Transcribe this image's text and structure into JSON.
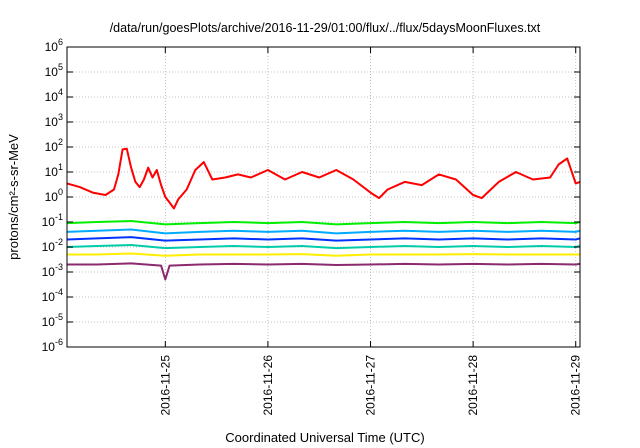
{
  "chart_data": {
    "type": "line",
    "title": "/data/run/goesPlots/archive/2016-11-29/01:00/flux/../flux/5daysMoonFluxes.txt",
    "xlabel": "Coordinated Universal Time (UTC)",
    "ylabel": "protons/cm²-s-sr-MeV",
    "y_scale": "log",
    "ylim": [
      1e-06,
      1000000.0
    ],
    "xlim": [
      "2016-11-24 01:00",
      "2016-11-29 01:00"
    ],
    "grid": true,
    "legend": "none",
    "y_ticks": [
      {
        "value": 1e-06,
        "base": "10",
        "exp": "-6"
      },
      {
        "value": 1e-05,
        "base": "10",
        "exp": "-5"
      },
      {
        "value": 0.0001,
        "base": "10",
        "exp": "-4"
      },
      {
        "value": 0.001,
        "base": "10",
        "exp": "-3"
      },
      {
        "value": 0.01,
        "base": "10",
        "exp": "-2"
      },
      {
        "value": 0.1,
        "base": "10",
        "exp": "-1"
      },
      {
        "value": 1,
        "base": "10",
        "exp": "0"
      },
      {
        "value": 10,
        "base": "10",
        "exp": "1"
      },
      {
        "value": 100,
        "base": "10",
        "exp": "2"
      },
      {
        "value": 1000,
        "base": "10",
        "exp": "3"
      },
      {
        "value": 10000,
        "base": "10",
        "exp": "4"
      },
      {
        "value": 100000,
        "base": "10",
        "exp": "5"
      },
      {
        "value": 1000000,
        "base": "10",
        "exp": "6"
      }
    ],
    "x_ticks": [
      {
        "value": "2016-11-25",
        "label": "2016-11-25"
      },
      {
        "value": "2016-11-26",
        "label": "2016-11-26"
      },
      {
        "value": "2016-11-27",
        "label": "2016-11-27"
      },
      {
        "value": "2016-11-28",
        "label": "2016-11-28"
      },
      {
        "value": "2016-11-29",
        "label": "2016-11-29"
      }
    ],
    "series": [
      {
        "color": "#ff0000",
        "x": [
          "2016-11-24 01:00",
          "2016-11-24 04:00",
          "2016-11-24 07:00",
          "2016-11-24 10:00",
          "2016-11-24 12:00",
          "2016-11-24 13:00",
          "2016-11-24 14:00",
          "2016-11-24 15:00",
          "2016-11-24 16:00",
          "2016-11-24 17:00",
          "2016-11-24 18:00",
          "2016-11-24 19:00",
          "2016-11-24 20:00",
          "2016-11-24 21:00",
          "2016-11-24 22:00",
          "2016-11-24 23:00",
          "2016-11-25 00:00",
          "2016-11-25 01:00",
          "2016-11-25 02:00",
          "2016-11-25 03:00",
          "2016-11-25 05:00",
          "2016-11-25 07:00",
          "2016-11-25 09:00",
          "2016-11-25 11:00",
          "2016-11-25 14:00",
          "2016-11-25 17:00",
          "2016-11-25 20:00",
          "2016-11-26 00:00",
          "2016-11-26 04:00",
          "2016-11-26 08:00",
          "2016-11-26 12:00",
          "2016-11-26 16:00",
          "2016-11-26 20:00",
          "2016-11-27 00:00",
          "2016-11-27 02:00",
          "2016-11-27 04:00",
          "2016-11-27 08:00",
          "2016-11-27 12:00",
          "2016-11-27 16:00",
          "2016-11-27 20:00",
          "2016-11-28 00:00",
          "2016-11-28 02:00",
          "2016-11-28 06:00",
          "2016-11-28 10:00",
          "2016-11-28 14:00",
          "2016-11-28 18:00",
          "2016-11-28 20:00",
          "2016-11-28 22:00",
          "2016-11-29 00:00",
          "2016-11-29 01:00"
        ],
        "values": [
          3.5,
          2.5,
          1.5,
          1.2,
          2.0,
          8,
          80,
          85,
          15,
          4,
          2.5,
          5,
          15,
          6,
          12,
          3,
          1.0,
          0.6,
          0.35,
          0.8,
          2,
          12,
          25,
          5,
          6,
          8,
          6,
          12,
          5,
          10,
          6,
          12,
          5,
          1.5,
          0.9,
          2,
          4,
          3,
          8,
          5,
          1.2,
          0.9,
          4,
          10,
          5,
          6,
          20,
          35,
          3.5,
          4
        ]
      },
      {
        "color": "#00ee00",
        "x": [
          "2016-11-24 01:00",
          "2016-11-24 08:00",
          "2016-11-24 16:00",
          "2016-11-25 00:00",
          "2016-11-25 08:00",
          "2016-11-25 16:00",
          "2016-11-26 00:00",
          "2016-11-26 08:00",
          "2016-11-26 16:00",
          "2016-11-27 00:00",
          "2016-11-27 08:00",
          "2016-11-27 16:00",
          "2016-11-28 00:00",
          "2016-11-28 08:00",
          "2016-11-28 16:00",
          "2016-11-29 00:00",
          "2016-11-29 01:00"
        ],
        "values": [
          0.09,
          0.1,
          0.11,
          0.08,
          0.09,
          0.1,
          0.09,
          0.1,
          0.08,
          0.09,
          0.1,
          0.09,
          0.1,
          0.09,
          0.1,
          0.09,
          0.1
        ]
      },
      {
        "color": "#00aaff",
        "x": [
          "2016-11-24 01:00",
          "2016-11-24 08:00",
          "2016-11-24 16:00",
          "2016-11-25 00:00",
          "2016-11-25 08:00",
          "2016-11-25 16:00",
          "2016-11-26 00:00",
          "2016-11-26 08:00",
          "2016-11-26 16:00",
          "2016-11-27 00:00",
          "2016-11-27 08:00",
          "2016-11-27 16:00",
          "2016-11-28 00:00",
          "2016-11-28 08:00",
          "2016-11-28 16:00",
          "2016-11-29 00:00",
          "2016-11-29 01:00"
        ],
        "values": [
          0.04,
          0.045,
          0.05,
          0.035,
          0.04,
          0.045,
          0.04,
          0.045,
          0.035,
          0.04,
          0.045,
          0.04,
          0.045,
          0.04,
          0.045,
          0.04,
          0.045
        ]
      },
      {
        "color": "#0033ff",
        "x": [
          "2016-11-24 01:00",
          "2016-11-24 08:00",
          "2016-11-24 16:00",
          "2016-11-25 00:00",
          "2016-11-25 08:00",
          "2016-11-25 16:00",
          "2016-11-26 00:00",
          "2016-11-26 08:00",
          "2016-11-26 16:00",
          "2016-11-27 00:00",
          "2016-11-27 08:00",
          "2016-11-27 16:00",
          "2016-11-28 00:00",
          "2016-11-28 08:00",
          "2016-11-28 16:00",
          "2016-11-29 00:00",
          "2016-11-29 01:00"
        ],
        "values": [
          0.02,
          0.022,
          0.025,
          0.018,
          0.02,
          0.022,
          0.02,
          0.022,
          0.018,
          0.02,
          0.022,
          0.02,
          0.022,
          0.02,
          0.022,
          0.02,
          0.022
        ]
      },
      {
        "color": "#00ccaa",
        "x": [
          "2016-11-24 01:00",
          "2016-11-24 08:00",
          "2016-11-24 16:00",
          "2016-11-25 00:00",
          "2016-11-25 08:00",
          "2016-11-25 16:00",
          "2016-11-26 00:00",
          "2016-11-26 08:00",
          "2016-11-26 16:00",
          "2016-11-27 00:00",
          "2016-11-27 08:00",
          "2016-11-27 16:00",
          "2016-11-28 00:00",
          "2016-11-28 08:00",
          "2016-11-28 16:00",
          "2016-11-29 00:00",
          "2016-11-29 01:00"
        ],
        "values": [
          0.01,
          0.011,
          0.012,
          0.009,
          0.01,
          0.011,
          0.01,
          0.011,
          0.009,
          0.01,
          0.011,
          0.01,
          0.011,
          0.01,
          0.011,
          0.01,
          0.011
        ]
      },
      {
        "color": "#ffee00",
        "x": [
          "2016-11-24 01:00",
          "2016-11-24 08:00",
          "2016-11-24 16:00",
          "2016-11-25 00:00",
          "2016-11-25 08:00",
          "2016-11-25 16:00",
          "2016-11-26 00:00",
          "2016-11-26 08:00",
          "2016-11-26 16:00",
          "2016-11-27 00:00",
          "2016-11-27 08:00",
          "2016-11-27 16:00",
          "2016-11-28 00:00",
          "2016-11-28 08:00",
          "2016-11-28 16:00",
          "2016-11-29 00:00",
          "2016-11-29 01:00"
        ],
        "values": [
          0.005,
          0.005,
          0.0055,
          0.0045,
          0.005,
          0.005,
          0.005,
          0.0052,
          0.0045,
          0.005,
          0.005,
          0.005,
          0.0052,
          0.005,
          0.005,
          0.005,
          0.005
        ]
      },
      {
        "color": "#8b2a6e",
        "x": [
          "2016-11-24 01:00",
          "2016-11-24 08:00",
          "2016-11-24 16:00",
          "2016-11-24 23:00",
          "2016-11-25 00:00",
          "2016-11-25 01:00",
          "2016-11-25 08:00",
          "2016-11-25 16:00",
          "2016-11-26 00:00",
          "2016-11-26 08:00",
          "2016-11-26 16:00",
          "2016-11-27 00:00",
          "2016-11-27 08:00",
          "2016-11-27 16:00",
          "2016-11-28 00:00",
          "2016-11-28 08:00",
          "2016-11-28 16:00",
          "2016-11-29 00:00",
          "2016-11-29 01:00"
        ],
        "values": [
          0.002,
          0.002,
          0.0022,
          0.0018,
          0.0005,
          0.0018,
          0.002,
          0.0021,
          0.002,
          0.0021,
          0.0019,
          0.002,
          0.0021,
          0.002,
          0.0021,
          0.002,
          0.0021,
          0.002,
          0.0021
        ]
      }
    ]
  }
}
